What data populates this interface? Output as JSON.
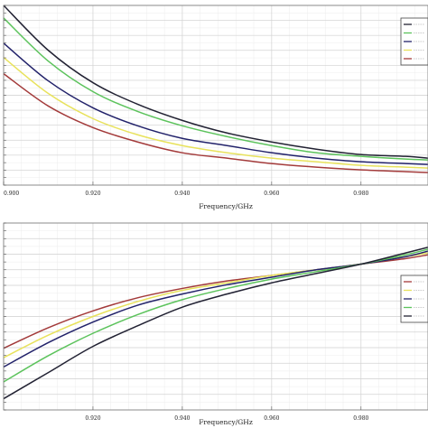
{
  "chart_data": [
    {
      "type": "line",
      "xlabel": "Frequency/GHz",
      "ylabel": "",
      "xlim": [
        0.9,
        0.995
      ],
      "ylim": [
        0,
        1
      ],
      "grid": true,
      "legend": "top-right",
      "x_ticks": [
        0.9,
        0.92,
        0.94,
        0.96,
        0.98
      ],
      "x_tick_labels": [
        "0.900",
        "0.920",
        "0.940",
        "0.960",
        "0.980"
      ],
      "series": [
        {
          "color": "#222233",
          "x": [
            0.9,
            0.91,
            0.92,
            0.93,
            0.94,
            0.95,
            0.96,
            0.97,
            0.98,
            0.99,
            0.995
          ],
          "y": [
            1.0,
            0.75,
            0.57,
            0.45,
            0.36,
            0.29,
            0.24,
            0.2,
            0.17,
            0.16,
            0.15
          ]
        },
        {
          "color": "#5cc35c",
          "x": [
            0.9,
            0.91,
            0.92,
            0.93,
            0.94,
            0.95,
            0.96,
            0.97,
            0.98,
            0.99,
            0.995
          ],
          "y": [
            0.93,
            0.69,
            0.52,
            0.41,
            0.33,
            0.27,
            0.22,
            0.18,
            0.16,
            0.145,
            0.14
          ]
        },
        {
          "color": "#22226a",
          "x": [
            0.9,
            0.91,
            0.92,
            0.93,
            0.94,
            0.95,
            0.96,
            0.97,
            0.98,
            0.99,
            0.995
          ],
          "y": [
            0.79,
            0.58,
            0.43,
            0.33,
            0.26,
            0.22,
            0.18,
            0.15,
            0.13,
            0.12,
            0.115
          ]
        },
        {
          "color": "#e8e25c",
          "x": [
            0.9,
            0.91,
            0.92,
            0.93,
            0.94,
            0.95,
            0.96,
            0.97,
            0.98,
            0.99,
            0.995
          ],
          "y": [
            0.71,
            0.51,
            0.37,
            0.28,
            0.22,
            0.18,
            0.15,
            0.13,
            0.11,
            0.1,
            0.095
          ]
        },
        {
          "color": "#a33a3a",
          "x": [
            0.9,
            0.91,
            0.92,
            0.93,
            0.94,
            0.95,
            0.96,
            0.97,
            0.98,
            0.99,
            0.995
          ],
          "y": [
            0.62,
            0.44,
            0.32,
            0.24,
            0.18,
            0.15,
            0.12,
            0.1,
            0.085,
            0.075,
            0.07
          ]
        }
      ]
    },
    {
      "type": "line",
      "xlabel": "Frequency/GHz",
      "ylabel": "",
      "xlim": [
        0.9,
        0.995
      ],
      "ylim": [
        0,
        1
      ],
      "grid": true,
      "legend": "right",
      "x_ticks": [
        0.92,
        0.94,
        0.96,
        0.98
      ],
      "x_tick_labels": [
        "0.920",
        "0.940",
        "0.960",
        "0.980"
      ],
      "series": [
        {
          "color": "#a33a3a",
          "x": [
            0.9,
            0.91,
            0.92,
            0.93,
            0.94,
            0.95,
            0.96,
            0.97,
            0.98,
            0.99,
            0.995
          ],
          "y": [
            0.33,
            0.44,
            0.53,
            0.6,
            0.65,
            0.69,
            0.72,
            0.75,
            0.78,
            0.81,
            0.83
          ]
        },
        {
          "color": "#e8e25c",
          "x": [
            0.9,
            0.91,
            0.92,
            0.93,
            0.94,
            0.95,
            0.96,
            0.97,
            0.98,
            0.99,
            0.995
          ],
          "y": [
            0.28,
            0.4,
            0.5,
            0.58,
            0.64,
            0.68,
            0.72,
            0.75,
            0.78,
            0.82,
            0.84
          ]
        },
        {
          "color": "#22226a",
          "x": [
            0.9,
            0.91,
            0.92,
            0.93,
            0.94,
            0.95,
            0.96,
            0.97,
            0.98,
            0.99,
            0.995
          ],
          "y": [
            0.23,
            0.36,
            0.47,
            0.56,
            0.62,
            0.67,
            0.71,
            0.75,
            0.78,
            0.82,
            0.85
          ]
        },
        {
          "color": "#5cc35c",
          "x": [
            0.9,
            0.91,
            0.92,
            0.93,
            0.94,
            0.95,
            0.96,
            0.97,
            0.98,
            0.99,
            0.995
          ],
          "y": [
            0.15,
            0.29,
            0.41,
            0.51,
            0.59,
            0.65,
            0.7,
            0.74,
            0.78,
            0.83,
            0.86
          ]
        },
        {
          "color": "#222233",
          "x": [
            0.9,
            0.91,
            0.92,
            0.93,
            0.94,
            0.95,
            0.96,
            0.97,
            0.98,
            0.99,
            0.995
          ],
          "y": [
            0.06,
            0.2,
            0.34,
            0.45,
            0.55,
            0.62,
            0.68,
            0.73,
            0.78,
            0.84,
            0.87
          ]
        }
      ]
    }
  ]
}
